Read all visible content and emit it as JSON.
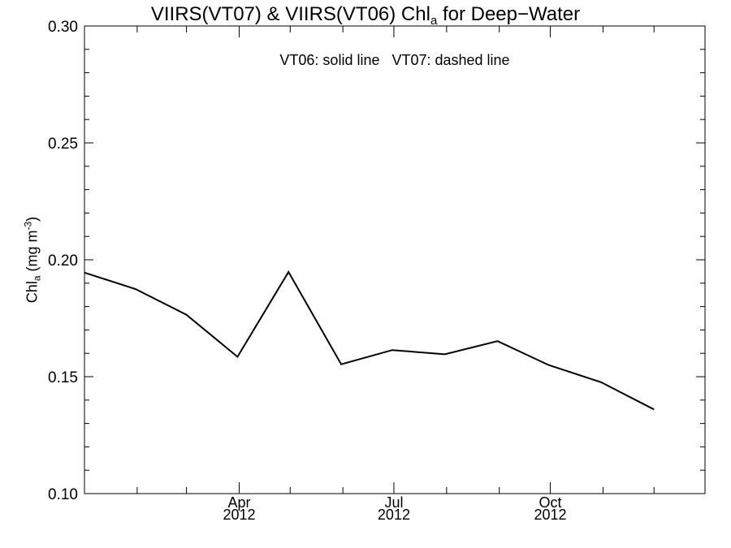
{
  "chart_data": {
    "type": "line",
    "title": {
      "main": "VIIRS(VT07) & VIIRS(VT06)  Chl",
      "subscript": "a",
      "suffix": " for Deep−Water"
    },
    "annotation": "VT06: solid line   VT07: dashed line",
    "ylabel": {
      "main": "Chl",
      "subscript": "a",
      "middle": " (mg m",
      "superscript": "-3",
      "suffix": ")"
    },
    "ylim": [
      0.1,
      0.3
    ],
    "yticks": [
      "0.10",
      "0.15",
      "0.20",
      "0.25",
      "0.30"
    ],
    "xlim": [
      "2012-01-01",
      "2012-12-31"
    ],
    "xticks": [
      {
        "month": "Apr",
        "year": "2012",
        "date": "2012-04-01"
      },
      {
        "month": "Jul",
        "year": "2012",
        "date": "2012-07-01"
      },
      {
        "month": "Oct",
        "year": "2012",
        "date": "2012-10-01"
      }
    ],
    "minor_ticks_x": [
      "2012-02-01",
      "2012-03-01",
      "2012-05-01",
      "2012-06-01",
      "2012-08-01",
      "2012-09-01",
      "2012-11-01",
      "2012-12-01"
    ],
    "grid": false,
    "series": [
      {
        "name": "VT06",
        "style": "solid",
        "color": "#000000",
        "x": [
          "2012-01-01",
          "2012-01-31",
          "2012-03-01",
          "2012-03-31",
          "2012-04-30",
          "2012-05-31",
          "2012-06-30",
          "2012-07-31",
          "2012-08-31",
          "2012-09-30",
          "2012-10-31",
          "2012-12-01"
        ],
        "values": [
          0.1945,
          0.1875,
          0.1765,
          0.1585,
          0.1948,
          0.1553,
          0.1614,
          0.1596,
          0.1652,
          0.155,
          0.1476,
          0.136
        ]
      }
    ]
  }
}
